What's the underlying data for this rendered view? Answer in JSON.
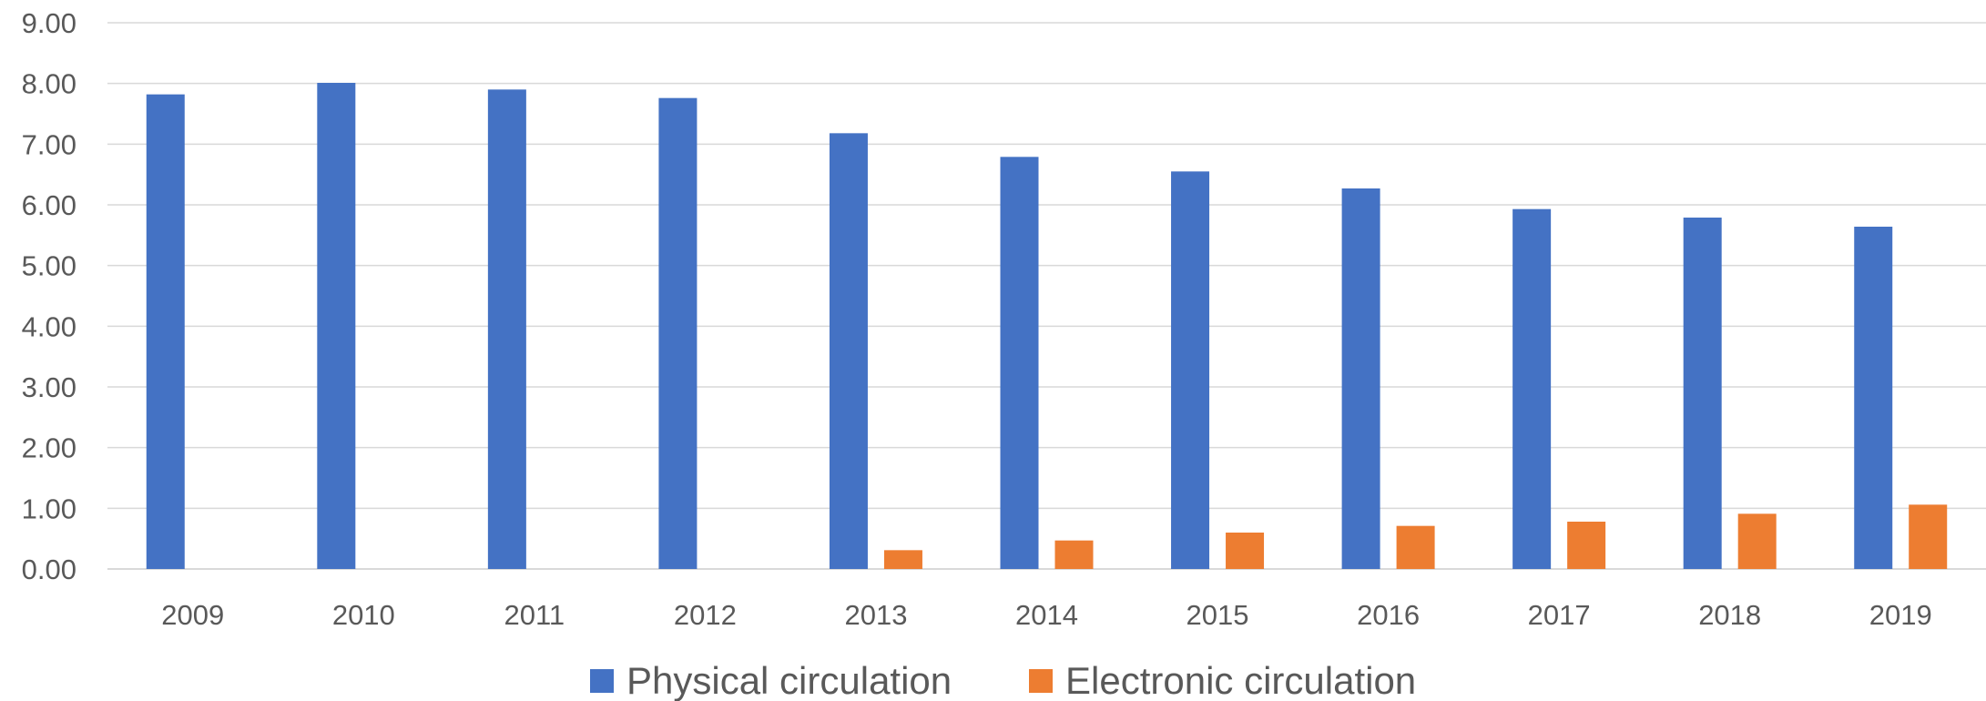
{
  "chart_data": {
    "type": "bar",
    "title": "",
    "xlabel": "",
    "ylabel": "",
    "categories": [
      "2009",
      "2010",
      "2011",
      "2012",
      "2013",
      "2014",
      "2015",
      "2016",
      "2017",
      "2018",
      "2019"
    ],
    "series": [
      {
        "name": "Physical circulation",
        "color": "#4472c4",
        "values": [
          7.82,
          8.01,
          7.9,
          7.76,
          7.18,
          6.79,
          6.55,
          6.27,
          5.93,
          5.79,
          5.64
        ]
      },
      {
        "name": "Electronic circulation",
        "color": "#ed7d31",
        "values": [
          null,
          null,
          null,
          null,
          0.31,
          0.47,
          0.6,
          0.71,
          0.78,
          0.91,
          1.06
        ]
      }
    ],
    "ylim": [
      0,
      9
    ],
    "yticks": [
      "0.00",
      "1.00",
      "2.00",
      "3.00",
      "4.00",
      "5.00",
      "6.00",
      "7.00",
      "8.00",
      "9.00"
    ],
    "grid": true,
    "legend_position": "bottom"
  }
}
